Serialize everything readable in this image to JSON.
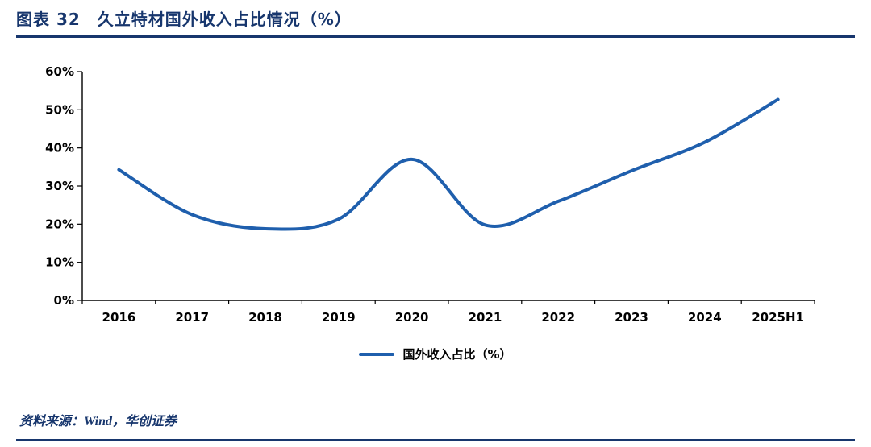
{
  "header": {
    "title": "图表 32　久立特材国外收入占比情况（%）"
  },
  "footer": {
    "source": "资料来源：Wind，华创证券"
  },
  "colors": {
    "accent": "#17366d",
    "line": "#1f5fad",
    "axis": "#000000"
  },
  "chart_data": {
    "type": "line",
    "title": "久立特材国外收入占比情况（%）",
    "categories": [
      "2016",
      "2017",
      "2018",
      "2019",
      "2020",
      "2021",
      "2022",
      "2023",
      "2024",
      "2025H1"
    ],
    "series": [
      {
        "name": "国外收入占比（%）",
        "values": [
          34.3,
          22.5,
          18.8,
          21.3,
          37.0,
          19.8,
          26.0,
          34.0,
          41.5,
          52.7
        ]
      }
    ],
    "xlabel": "",
    "ylabel": "",
    "ylim": [
      0,
      60
    ],
    "ytick_step": 10,
    "ytick_labels": [
      "0%",
      "10%",
      "20%",
      "30%",
      "40%",
      "50%",
      "60%"
    ],
    "grid": false,
    "legend_position": "bottom",
    "line_color": "#1f5fad",
    "smooth": true
  }
}
